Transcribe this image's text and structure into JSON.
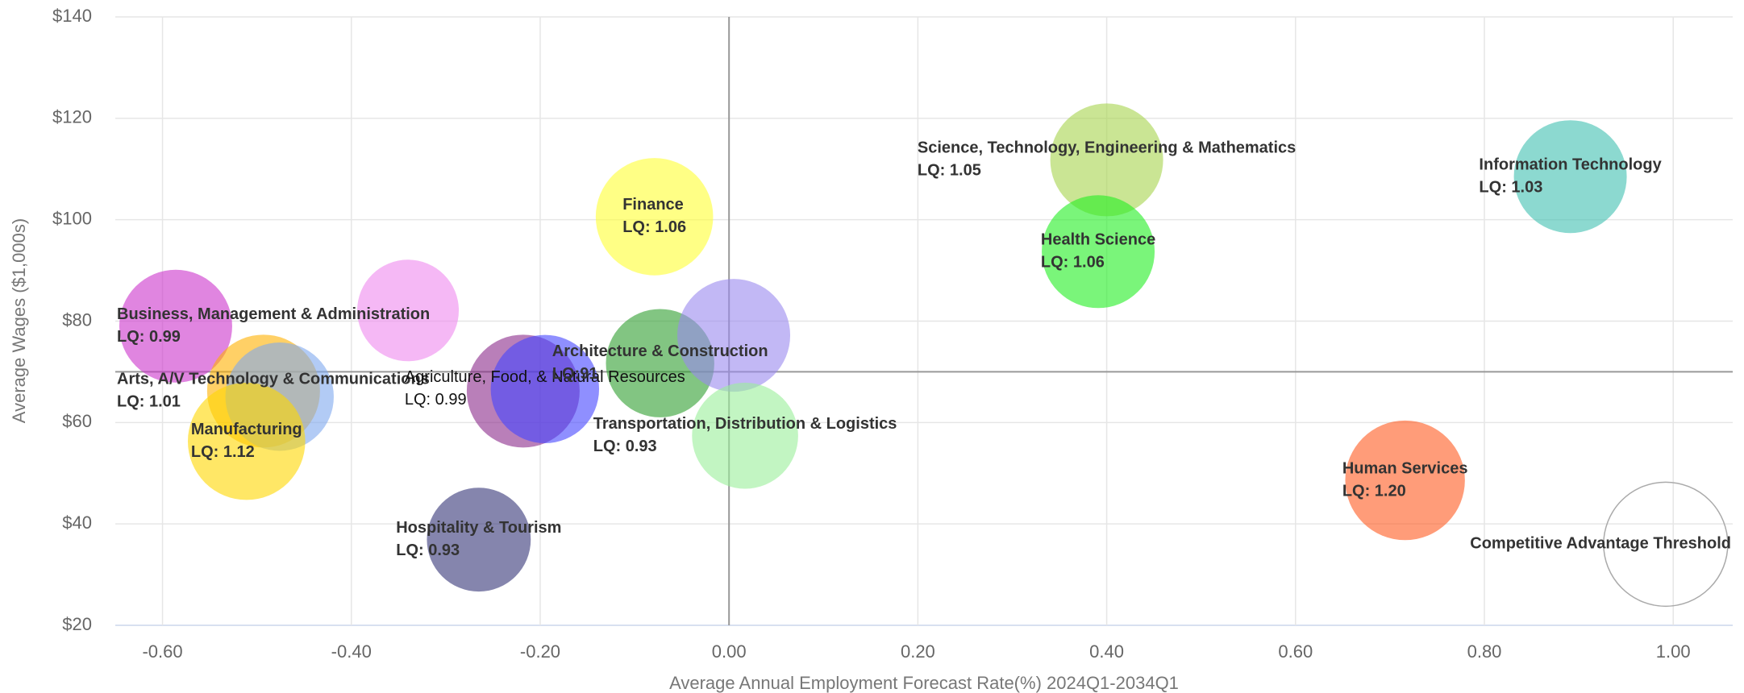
{
  "chart_data": {
    "type": "bubble",
    "x_label": "Average Annual Employment Forecast Rate(%) 2024Q1-2034Q1",
    "y_label": "Average Wages ($1,000s)",
    "xlim": [
      -0.65,
      1.063
    ],
    "ylim": [
      20,
      140
    ],
    "xticks": [
      {
        "value": -0.6,
        "label": "-0.60"
      },
      {
        "value": -0.4,
        "label": "-0.40"
      },
      {
        "value": -0.2,
        "label": "-0.20"
      },
      {
        "value": 0,
        "label": "0.00"
      },
      {
        "value": 0.2,
        "label": "0.20"
      },
      {
        "value": 0.4,
        "label": "0.40"
      },
      {
        "value": 0.6,
        "label": "0.60"
      },
      {
        "value": 0.8,
        "label": "0.80"
      },
      {
        "value": 1.0,
        "label": "1.00"
      }
    ],
    "yticks": [
      {
        "value": 20,
        "label": "$20"
      },
      {
        "value": 40,
        "label": "$40"
      },
      {
        "value": 60,
        "label": "$60"
      },
      {
        "value": 80,
        "label": "$80"
      },
      {
        "value": 100,
        "label": "$100"
      },
      {
        "value": 120,
        "label": "$120"
      },
      {
        "value": 140,
        "label": "$140"
      }
    ],
    "grid": true,
    "reference_lines": {
      "x": 0,
      "y": 70
    },
    "series": [
      {
        "name": null,
        "color": "#ee88ee",
        "x": [
          -0.34
        ],
        "values": [
          82.1
        ],
        "sizes": [
          45
        ]
      },
      {
        "name": "Business, Management & Administration",
        "label": "LQ: 0.99",
        "color": "#cc33cc",
        "x": [
          -0.586
        ],
        "values": [
          79.0
        ],
        "sizes": [
          50
        ]
      },
      {
        "name": "Arts, A/V Technology & Communications",
        "label": "LQ: 1.01",
        "color": "#ffb000",
        "x": [
          -0.493
        ],
        "values": [
          66.2
        ],
        "sizes": [
          50
        ]
      },
      {
        "name": null,
        "color": "#7fa8ee",
        "x": [
          -0.476
        ],
        "values": [
          65.1
        ],
        "sizes": [
          48
        ]
      },
      {
        "name": "Manufacturing",
        "label": "LQ: 1.12",
        "color": "#ffd700",
        "x": [
          -0.511
        ],
        "values": [
          56.3
        ],
        "sizes": [
          52
        ]
      },
      {
        "name": null,
        "color": "#8b2a8b",
        "x": [
          -0.218
        ],
        "values": [
          66.2
        ],
        "sizes": [
          50
        ]
      },
      {
        "name": "Agriculture, Food, & Natural Resources",
        "label": "LQ: 0.99",
        "label_style": "normal",
        "color": "#4444ff",
        "x": [
          -0.195
        ],
        "values": [
          66.6
        ],
        "sizes": [
          48
        ]
      },
      {
        "name": "Architecture & Construction",
        "label": "LQ:91",
        "color": "#2e9e2e",
        "x": [
          -0.073
        ],
        "values": [
          71.7
        ],
        "sizes": [
          48
        ]
      },
      {
        "name": null,
        "color": "#9988ee",
        "x": [
          0.005
        ],
        "values": [
          77.2
        ],
        "sizes": [
          50
        ]
      },
      {
        "name": "Transportation, Distribution & Logistics",
        "label": "LQ: 0.93",
        "color": "#99ee99",
        "x": [
          0.017
        ],
        "values": [
          57.4
        ],
        "sizes": [
          47
        ]
      },
      {
        "name": "Finance",
        "label": "LQ: 1.06",
        "color": "#ffff33",
        "x": [
          -0.079
        ],
        "values": [
          100.6
        ],
        "sizes": [
          52
        ]
      },
      {
        "name": "Hospitality & Tourism",
        "label": "LQ: 0.93",
        "color": "#333377",
        "x": [
          -0.265
        ],
        "values": [
          36.9
        ],
        "sizes": [
          46
        ]
      },
      {
        "name": "Science, Technology, Engineering & Mathematics",
        "label": "LQ: 1.05",
        "color": "#a6d44d",
        "x": [
          0.4
        ],
        "values": [
          111.8
        ],
        "sizes": [
          50
        ]
      },
      {
        "name": "Health Science",
        "label": "LQ: 1.06",
        "color": "#22ee22",
        "x": [
          0.391
        ],
        "values": [
          93.7
        ],
        "sizes": [
          50
        ]
      },
      {
        "name": "Information Technology",
        "label": "LQ: 1.03",
        "color": "#40bfb0",
        "x": [
          0.891
        ],
        "values": [
          108.5
        ],
        "sizes": [
          50
        ]
      },
      {
        "name": "Human Services",
        "label": "LQ: 1.20",
        "color": "#ff5a1f",
        "x": [
          0.716
        ],
        "values": [
          48.6
        ],
        "sizes": [
          53
        ]
      },
      {
        "name": "Competitive Advantage Threshold",
        "color": "none",
        "x": [
          0.992
        ],
        "values": [
          36.0
        ],
        "sizes": [
          55
        ]
      }
    ]
  }
}
